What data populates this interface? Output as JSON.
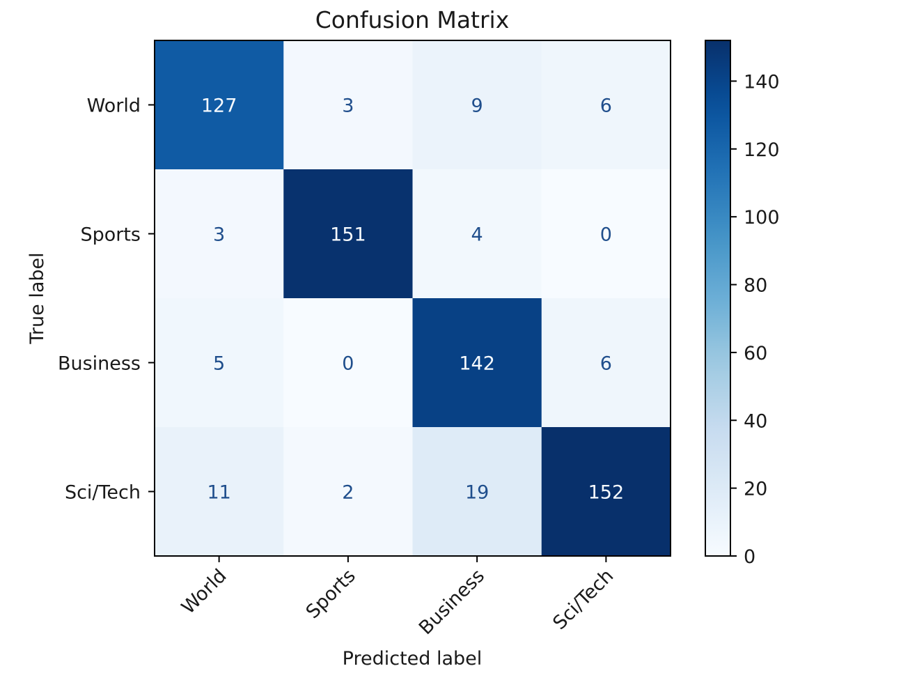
{
  "chart_data": {
    "type": "heatmap",
    "title": "Confusion Matrix",
    "xlabel": "Predicted label",
    "ylabel": "True label",
    "x_categories": [
      "World",
      "Sports",
      "Business",
      "Sci/Tech"
    ],
    "y_categories": [
      "World",
      "Sports",
      "Business",
      "Sci/Tech"
    ],
    "values": [
      [
        127,
        3,
        9,
        6
      ],
      [
        3,
        151,
        4,
        0
      ],
      [
        5,
        0,
        142,
        6
      ],
      [
        11,
        2,
        19,
        152
      ]
    ],
    "colormap": "Blues",
    "colorbar": {
      "min": 0,
      "max": 152,
      "ticks": [
        0,
        20,
        40,
        60,
        80,
        100,
        120,
        140
      ]
    },
    "grid": false
  }
}
